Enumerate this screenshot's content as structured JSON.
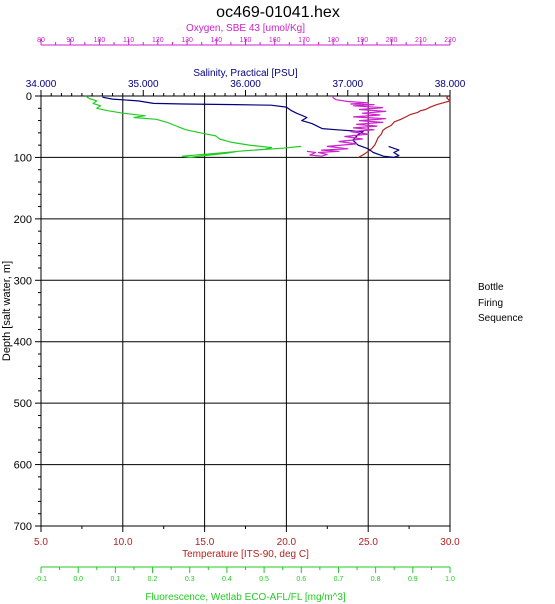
{
  "chart_data": {
    "type": "line",
    "title": "oc469-01041.hex",
    "y_axis": {
      "label": "Depth [salt water, m]",
      "range": [
        0,
        700
      ],
      "reversed": true,
      "ticks": [
        "0",
        "100",
        "200",
        "300",
        "400",
        "500",
        "600",
        "700"
      ]
    },
    "x_axes": [
      {
        "key": "temperature",
        "label": "Temperature [ITS-90, deg C]",
        "position": "bottom",
        "range": [
          5.0,
          30.0
        ],
        "ticks": [
          "5.0",
          "10.0",
          "15.0",
          "20.0",
          "25.0",
          "30.0"
        ],
        "color": "#b22222"
      },
      {
        "key": "fluorescence",
        "label": "Fluorescence, Wetlab ECO-AFL/FL [mg/m^3]",
        "position": "bottom",
        "range": [
          -0.1,
          1.0
        ],
        "ticks": [
          "-0.1",
          "0.0",
          "0.1",
          "0.2",
          "0.3",
          "0.4",
          "0.5",
          "0.6",
          "0.7",
          "0.8",
          "0.9",
          "1.0"
        ],
        "color": "#22cc22"
      },
      {
        "key": "salinity",
        "label": "Salinity, Practical [PSU]",
        "position": "top",
        "range": [
          34.0,
          38.0
        ],
        "ticks": [
          "34.000",
          "35.000",
          "36.000",
          "37.000",
          "38.000"
        ],
        "color": "#000080"
      },
      {
        "key": "oxygen",
        "label": "Oxygen, SBE 43 [umol/Kg]",
        "position": "top",
        "range": [
          80,
          220
        ],
        "ticks": [
          "80",
          "90",
          "100",
          "110",
          "120",
          "130",
          "140",
          "150",
          "160",
          "170",
          "180",
          "190",
          "200",
          "210",
          "220"
        ],
        "color": "#cc22cc"
      }
    ],
    "series": [
      {
        "axis": "temperature",
        "color": "#b22222",
        "points": [
          [
            29.9,
            0
          ],
          [
            29.8,
            3
          ],
          [
            30.0,
            8
          ],
          [
            29.2,
            14
          ],
          [
            28.8,
            18
          ],
          [
            28.5,
            22
          ],
          [
            28.2,
            24
          ],
          [
            28.0,
            27
          ],
          [
            27.6,
            30
          ],
          [
            27.3,
            34
          ],
          [
            27.0,
            38
          ],
          [
            26.6,
            42
          ],
          [
            26.4,
            48
          ],
          [
            26.1,
            52
          ],
          [
            25.9,
            56
          ],
          [
            25.8,
            62
          ],
          [
            25.6,
            68
          ],
          [
            25.5,
            74
          ],
          [
            25.4,
            80
          ],
          [
            25.2,
            86
          ],
          [
            25.0,
            90
          ],
          [
            24.8,
            94
          ],
          [
            24.6,
            97
          ],
          [
            24.4,
            100
          ]
        ]
      },
      {
        "axis": "salinity",
        "color": "#000080",
        "points": [
          [
            34.6,
            2
          ],
          [
            34.7,
            5
          ],
          [
            34.95,
            8
          ],
          [
            35.1,
            12
          ],
          [
            35.4,
            13
          ],
          [
            35.9,
            14
          ],
          [
            36.25,
            15
          ],
          [
            36.4,
            18
          ],
          [
            36.45,
            24
          ],
          [
            36.5,
            28
          ],
          [
            36.6,
            35
          ],
          [
            36.55,
            40
          ],
          [
            36.65,
            45
          ],
          [
            36.75,
            53
          ],
          [
            36.9,
            55
          ],
          [
            37.15,
            58
          ],
          [
            37.1,
            63
          ],
          [
            37.05,
            72
          ],
          [
            37.1,
            80
          ],
          [
            37.2,
            86
          ],
          [
            37.25,
            92
          ],
          [
            37.35,
            98
          ],
          [
            37.45,
            100
          ],
          [
            37.5,
            97
          ],
          [
            37.45,
            92
          ],
          [
            37.5,
            88
          ],
          [
            37.4,
            82
          ]
        ]
      },
      {
        "axis": "oxygen",
        "color": "#cc22cc",
        "points": [
          [
            180,
            0
          ],
          [
            180,
            3
          ],
          [
            181,
            6
          ],
          [
            185,
            9
          ],
          [
            192,
            11
          ],
          [
            186,
            13
          ],
          [
            194,
            14
          ],
          [
            187,
            16
          ],
          [
            197,
            19
          ],
          [
            189,
            22
          ],
          [
            198,
            25
          ],
          [
            190,
            28
          ],
          [
            196,
            31
          ],
          [
            187,
            34
          ],
          [
            198,
            37
          ],
          [
            189,
            40
          ],
          [
            197,
            43
          ],
          [
            188,
            46
          ],
          [
            195,
            49
          ],
          [
            187,
            52
          ],
          [
            194,
            55
          ],
          [
            186,
            58
          ],
          [
            192,
            62
          ],
          [
            184,
            66
          ],
          [
            190,
            70
          ],
          [
            182,
            74
          ],
          [
            188,
            78
          ],
          [
            178,
            82
          ],
          [
            185,
            86
          ],
          [
            176,
            88
          ],
          [
            182,
            90
          ],
          [
            175,
            92
          ],
          [
            178,
            95
          ],
          [
            176,
            98
          ],
          [
            172,
            96
          ],
          [
            174,
            92
          ],
          [
            171,
            90
          ]
        ]
      },
      {
        "axis": "fluorescence",
        "color": "#22cc22",
        "points": [
          [
            0.02,
            0
          ],
          [
            0.03,
            4
          ],
          [
            0.05,
            8
          ],
          [
            0.04,
            12
          ],
          [
            0.06,
            16
          ],
          [
            0.05,
            20
          ],
          [
            0.08,
            24
          ],
          [
            0.12,
            28
          ],
          [
            0.18,
            32
          ],
          [
            0.15,
            35
          ],
          [
            0.21,
            38
          ],
          [
            0.24,
            43
          ],
          [
            0.26,
            48
          ],
          [
            0.29,
            55
          ],
          [
            0.33,
            60
          ],
          [
            0.37,
            65
          ],
          [
            0.38,
            70
          ],
          [
            0.41,
            75
          ],
          [
            0.46,
            80
          ],
          [
            0.52,
            84
          ],
          [
            0.5,
            87
          ],
          [
            0.43,
            90
          ],
          [
            0.4,
            93
          ],
          [
            0.34,
            97
          ],
          [
            0.3,
            100
          ],
          [
            0.28,
            98
          ],
          [
            0.36,
            94
          ],
          [
            0.45,
            89
          ],
          [
            0.55,
            85
          ],
          [
            0.6,
            82
          ]
        ]
      }
    ],
    "grid": true,
    "side_labels": [
      "Bottle",
      "Firing",
      "Sequence"
    ]
  }
}
